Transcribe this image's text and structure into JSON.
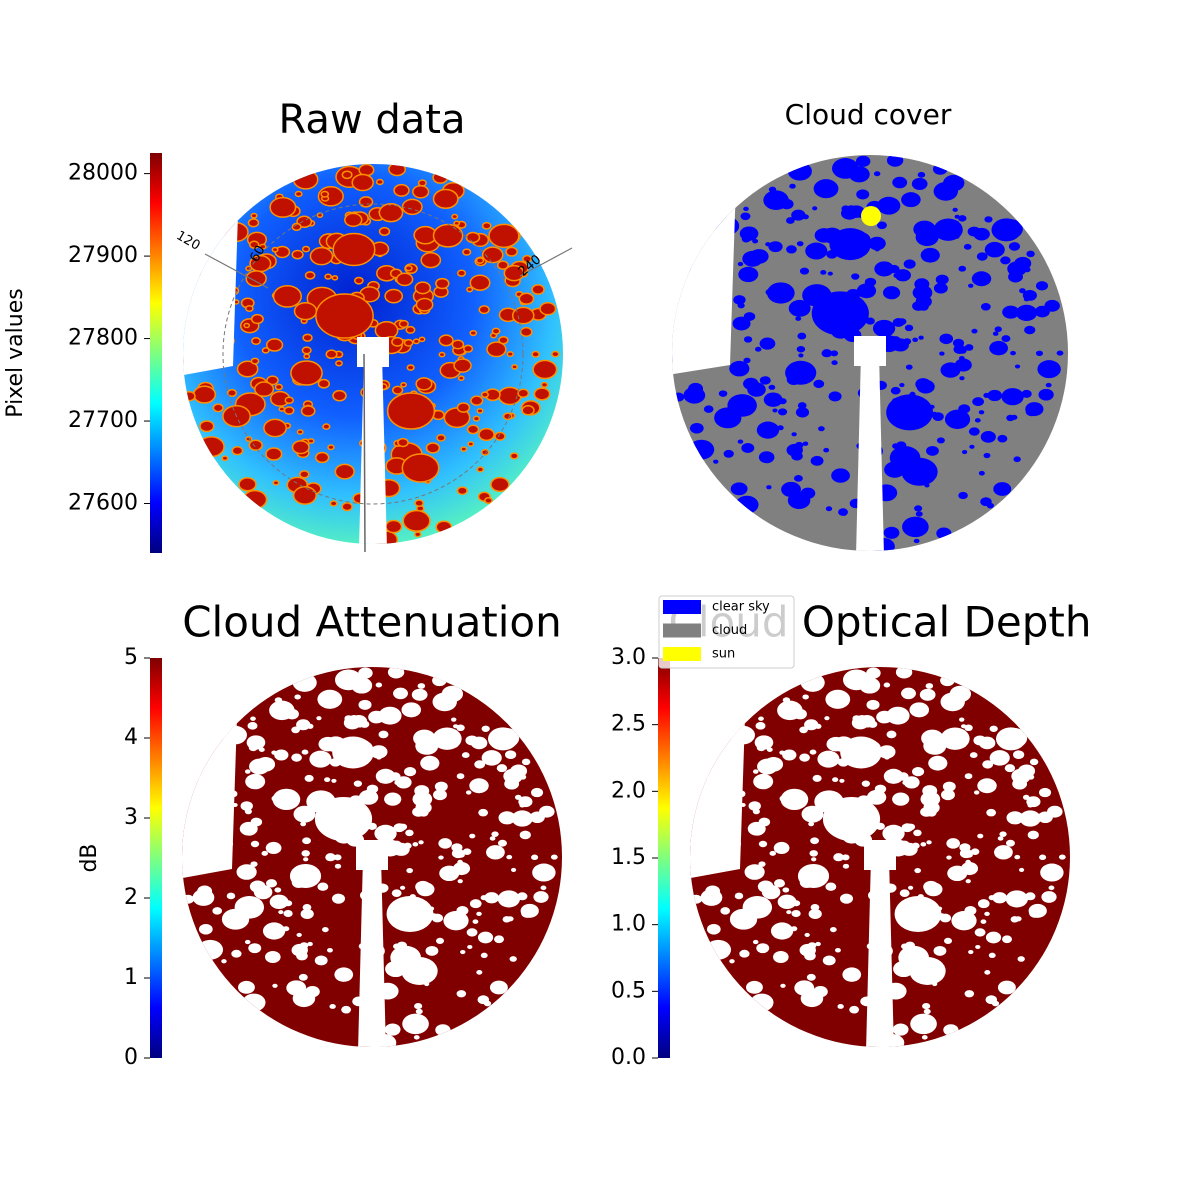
{
  "chart_data": [
    {
      "type": "image",
      "title": "Raw data",
      "colorbar": {
        "label": "Pixel values",
        "colormap": "jet",
        "ylim": [
          27540,
          28025
        ],
        "yticks": [
          27600,
          27700,
          27800,
          27900,
          28000
        ]
      },
      "annotations": [
        "120",
        "60",
        "240"
      ]
    },
    {
      "type": "image",
      "title": "Cloud cover",
      "legend": [
        {
          "name": "clear sky",
          "color": "#0000ff"
        },
        {
          "name": "cloud",
          "color": "#808080"
        },
        {
          "name": "sun",
          "color": "#ffff00"
        }
      ]
    },
    {
      "type": "image",
      "title": "Cloud Attenuation",
      "colorbar": {
        "label": "dB",
        "colormap": "jet",
        "ylim": [
          0,
          5
        ],
        "yticks": [
          0,
          1,
          2,
          3,
          4,
          5
        ]
      }
    },
    {
      "type": "image",
      "title": "Cloud Optical Depth",
      "colorbar": {
        "colormap": "jet",
        "ylim": [
          0,
          3
        ],
        "yticks": [
          {
            "value": 0,
            "label": "0.0"
          },
          {
            "value": 0.5,
            "label": "0.5"
          },
          {
            "value": 1,
            "label": "1.0"
          },
          {
            "value": 1.5,
            "label": "1.5"
          },
          {
            "value": 2,
            "label": "2.0"
          },
          {
            "value": 2.5,
            "label": "2.5"
          },
          {
            "value": 3,
            "label": "3.0"
          }
        ]
      }
    }
  ]
}
